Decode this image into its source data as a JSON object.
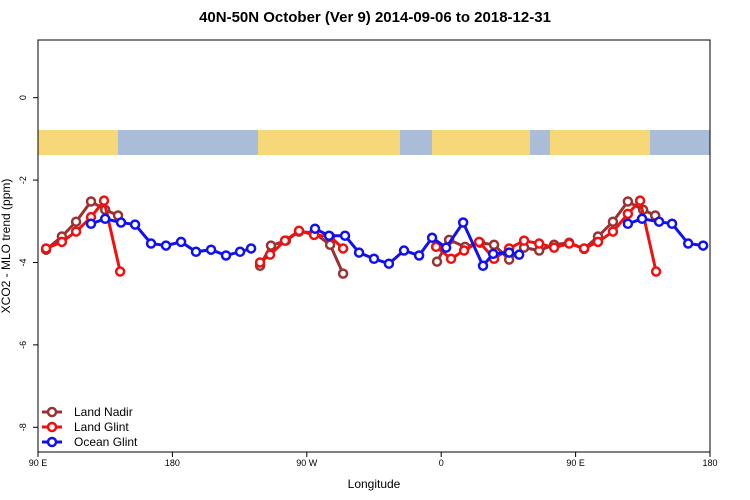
{
  "chart_data": {
    "type": "line",
    "title": "40N-50N October (Ver 9)   2014-09-06 to 2018-12-31",
    "x_label": "Longitude",
    "y_label": "XCO2 - MLO trend (ppm)",
    "xlim": [
      90,
      540
    ],
    "ylim": [
      -8.6,
      1.4
    ],
    "xticks": [
      {
        "value": 90,
        "label": "90 E"
      },
      180,
      {
        "value": 270,
        "label": "90 W"
      },
      {
        "value": 360,
        "label": "0"
      },
      {
        "value": 450,
        "label": "90 E"
      },
      {
        "value": 540,
        "label": "180"
      }
    ],
    "yticks": [
      0,
      -2,
      -4,
      -6,
      -8
    ],
    "legend_position": "bottom-left",
    "series": [
      {
        "name": "Land Nadir",
        "color": "#993333",
        "x": [
          95.4,
          106,
          115.5,
          125.5,
          135,
          143.6,
          null,
          238.7,
          246,
          256,
          264.8,
          274.9,
          285.6,
          294.3,
          null,
          357.2,
          365.3,
          376,
          386,
          395.4,
          405.5,
          415.5,
          425.6,
          435.6,
          445.7,
          455.7,
          465,
          475,
          485,
          495.2,
          503.3
        ],
        "values": [
          -3.69,
          -3.37,
          -3.01,
          -2.52,
          -2.72,
          -2.86,
          null,
          -4.08,
          -3.59,
          -3.47,
          -3.25,
          -3.28,
          -3.57,
          -4.27,
          null,
          -3.98,
          -3.45,
          -3.62,
          -3.52,
          -3.57,
          -3.93,
          -3.64,
          -3.71,
          -3.57,
          -3.52,
          -3.67,
          -3.37,
          -3.01,
          -2.52,
          -2.72,
          -2.86
        ]
      },
      {
        "name": "Land Glint",
        "color": "#ee1111",
        "x": [
          95.4,
          106,
          115.5,
          125.5,
          134.2,
          145,
          null,
          238.7,
          245.4,
          255.4,
          264.8,
          274.9,
          285.6,
          294.3,
          null,
          356.6,
          366.6,
          375.3,
          385.4,
          395.4,
          405.5,
          415.5,
          425.6,
          435.6,
          445.7,
          455.7,
          465,
          475,
          485,
          493.2,
          503.9
        ],
        "values": [
          -3.66,
          -3.5,
          -3.25,
          -2.9,
          -2.5,
          -4.22,
          null,
          -4.0,
          -3.81,
          -3.47,
          -3.23,
          -3.33,
          -3.37,
          -3.66,
          null,
          -3.62,
          -3.91,
          -3.71,
          -3.5,
          -3.91,
          -3.66,
          -3.47,
          -3.54,
          -3.64,
          -3.54,
          -3.66,
          -3.5,
          -3.25,
          -2.82,
          -2.5,
          -4.22
        ]
      },
      {
        "name": "Ocean Glint",
        "color": "#1111ee",
        "x": [
          125.5,
          135,
          145.6,
          155,
          165.7,
          175.7,
          185.8,
          195.8,
          205.9,
          215.9,
          225.3,
          232.7,
          null,
          275.5,
          284.9,
          295.6,
          305,
          315,
          325,
          335.1,
          345.2,
          353.9,
          363.3,
          374.7,
          388,
          394.8,
          405.5,
          412.2,
          null,
          485,
          494.5,
          505.9,
          514.6,
          525.4,
          535.4
        ],
        "values": [
          -3.06,
          -2.94,
          -3.03,
          -3.08,
          -3.54,
          -3.59,
          -3.5,
          -3.74,
          -3.69,
          -3.83,
          -3.74,
          -3.66,
          null,
          -3.18,
          -3.35,
          -3.35,
          -3.76,
          -3.91,
          -4.03,
          -3.71,
          -3.83,
          -3.4,
          -3.64,
          -3.03,
          -4.08,
          -3.79,
          -3.76,
          -3.81,
          null,
          -3.06,
          -2.94,
          -3.01,
          -3.06,
          -3.54,
          -3.59
        ]
      }
    ]
  }
}
